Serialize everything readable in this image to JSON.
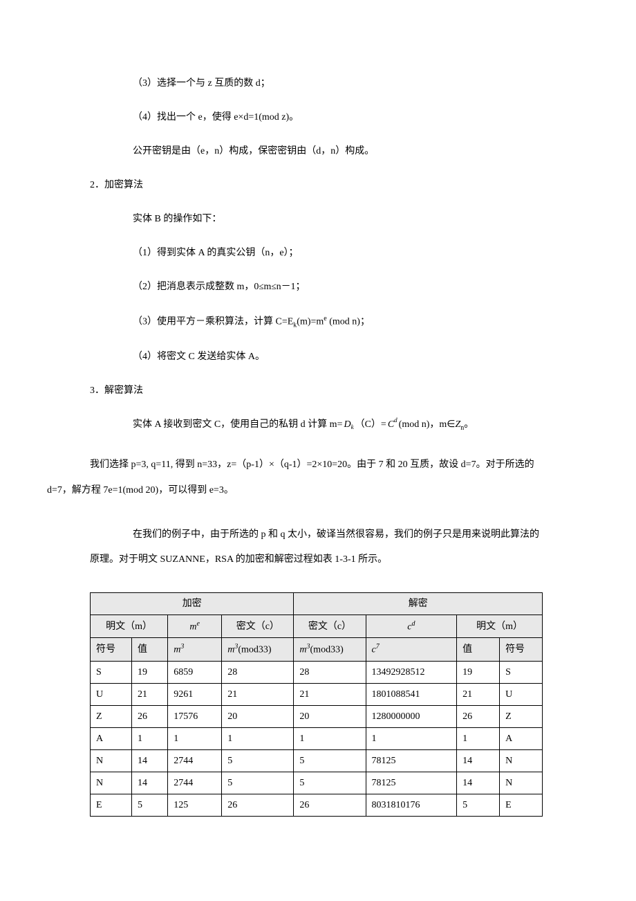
{
  "paragraphs": {
    "p1": "（3）选择一个与 z 互质的数 d；",
    "p2": "（4）找出一个 e，使得 e×d=1(mod z)。",
    "p3": "公开密钥是由（e，n）构成，保密密钥由（d，n）构成。",
    "h2": "2．加密算法",
    "p4": "实体 B 的操作如下：",
    "p5": "（1）得到实体 A 的真实公钥（n，e）；",
    "p6_pre": "（2）把消息表示成整数 m，0",
    "p6_mid": "m",
    "p6_post": "n－1；",
    "p7_pre": "（3）使用平方－乘积算法，计算 C=E",
    "p7_k": "k",
    "p7_mid": "(m)=m",
    "p7_e": "e",
    "p7_post": " (mod n)；",
    "p8": "（4）将密文 C 发送给实体 A。",
    "h3": "3．解密算法",
    "p9_pre": "实体 A 接收到密文 C，使用自己的私钥 d 计算 m=",
    "p9_dk": "D",
    "p9_dk_sub": "k",
    "p9_mid1": "（C）=",
    "p9_C": "C",
    "p9_C_sup": "d",
    "p9_mid2": "(mod n)，m∈",
    "p9_Z": "Z",
    "p9_Z_sub": "n",
    "p9_end": "。",
    "p10": "我们选择 p=3, q=11, 得到 n=33，z=（p-1）×（q-1）=2×10=20。由于 7 和 20 互质，故设 d=7。对于所选的 d=7，解方程 7e=1(mod 20)，可以得到 e=3。",
    "p11": "在我们的例子中，由于所选的 p 和 q 太小，破译当然很容易，我们的例子只是用来说明此算法的原理。对于明文 SUZANNE，RSA 的加密和解密过程如表 1-3-1 所示。"
  },
  "table": {
    "header1": {
      "enc": "加密",
      "dec": "解密"
    },
    "header2": {
      "plain_m": "明文（m）",
      "me": "m",
      "me_sup": "e",
      "cipher_c_enc": "密文（c）",
      "cipher_c_dec": "密文（c）",
      "cd": "c",
      "cd_sup": "d",
      "plain_m2": "明文（m）"
    },
    "header3": {
      "sym": "符号",
      "val": "值",
      "m3": "m",
      "m3_sup": "3",
      "m3mod": "m",
      "m3mod_sup": "3",
      "m3mod_post": "(mod33)",
      "m3mod2": "m",
      "m3mod2_sup": "3",
      "m3mod2_post": "(mod33)",
      "c7": "c",
      "c7_sup": "7",
      "val2": "值",
      "sym2": "符号"
    },
    "rows": [
      {
        "sym": "S",
        "val": "19",
        "m3": "6859",
        "m3mod": "28",
        "c3mod": "28",
        "c7": "13492928512",
        "val2": "19",
        "sym2": "S"
      },
      {
        "sym": "U",
        "val": "21",
        "m3": "9261",
        "m3mod": "21",
        "c3mod": "21",
        "c7": "1801088541",
        "val2": "21",
        "sym2": "U"
      },
      {
        "sym": "Z",
        "val": "26",
        "m3": "17576",
        "m3mod": "20",
        "c3mod": "20",
        "c7": "1280000000",
        "val2": "26",
        "sym2": "Z"
      },
      {
        "sym": "A",
        "val": "1",
        "m3": "1",
        "m3mod": "1",
        "c3mod": "1",
        "c7": "1",
        "val2": "1",
        "sym2": "A"
      },
      {
        "sym": "N",
        "val": "14",
        "m3": "2744",
        "m3mod": "5",
        "c3mod": "5",
        "c7": "78125",
        "val2": "14",
        "sym2": "N"
      },
      {
        "sym": "N",
        "val": "14",
        "m3": "2744",
        "m3mod": "5",
        "c3mod": "5",
        "c7": "78125",
        "val2": "14",
        "sym2": "N"
      },
      {
        "sym": "E",
        "val": "5",
        "m3": "125",
        "m3mod": "26",
        "c3mod": "26",
        "c7": "8031810176",
        "val2": "5",
        "sym2": "E"
      }
    ]
  }
}
